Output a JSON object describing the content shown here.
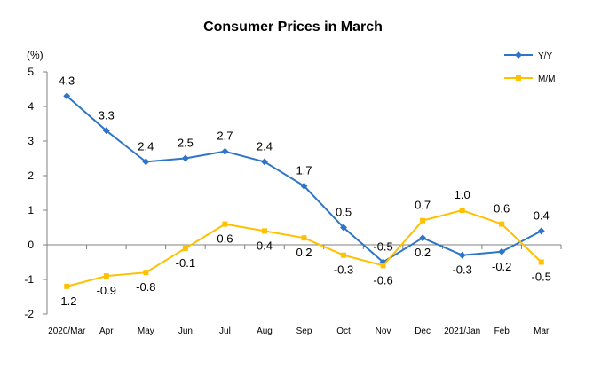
{
  "chart_data": {
    "type": "line",
    "title": "Consumer Prices in March",
    "ylabel": "(%)",
    "xlabel": "",
    "ylim": [
      -2,
      5
    ],
    "yticks": [
      -2,
      -1,
      0,
      1,
      2,
      3,
      4,
      5
    ],
    "grid": false,
    "legend_position": "top-right",
    "categories": [
      "2020/Mar",
      "Apr",
      "May",
      "Jun",
      "Jul",
      "Aug",
      "Sep",
      "Oct",
      "Nov",
      "Dec",
      "2021/Jan",
      "Feb",
      "Mar"
    ],
    "series": [
      {
        "name": "Y/Y",
        "color": "#2e75c8",
        "marker": "diamond",
        "values": [
          4.3,
          3.3,
          2.4,
          2.5,
          2.7,
          2.4,
          1.7,
          0.5,
          -0.5,
          0.2,
          -0.3,
          -0.2,
          0.4
        ],
        "labels": [
          "4.3",
          "3.3",
          "2.4",
          "2.5",
          "2.7",
          "2.4",
          "1.7",
          "0.5",
          "-0.5",
          "0.2",
          "-0.3",
          "-0.2",
          "0.4"
        ]
      },
      {
        "name": "M/M",
        "color": "#ffc000",
        "marker": "square",
        "values": [
          -1.2,
          -0.9,
          -0.8,
          -0.1,
          0.6,
          0.4,
          0.2,
          -0.3,
          -0.6,
          0.7,
          1.0,
          0.6,
          -0.5
        ],
        "labels": [
          "-1.2",
          "-0.9",
          "-0.8",
          "-0.1",
          "0.6",
          "0.4",
          "0.2",
          "-0.3",
          "-0.6",
          "0.7",
          "1.0",
          "0.6",
          "-0.5"
        ]
      }
    ]
  }
}
